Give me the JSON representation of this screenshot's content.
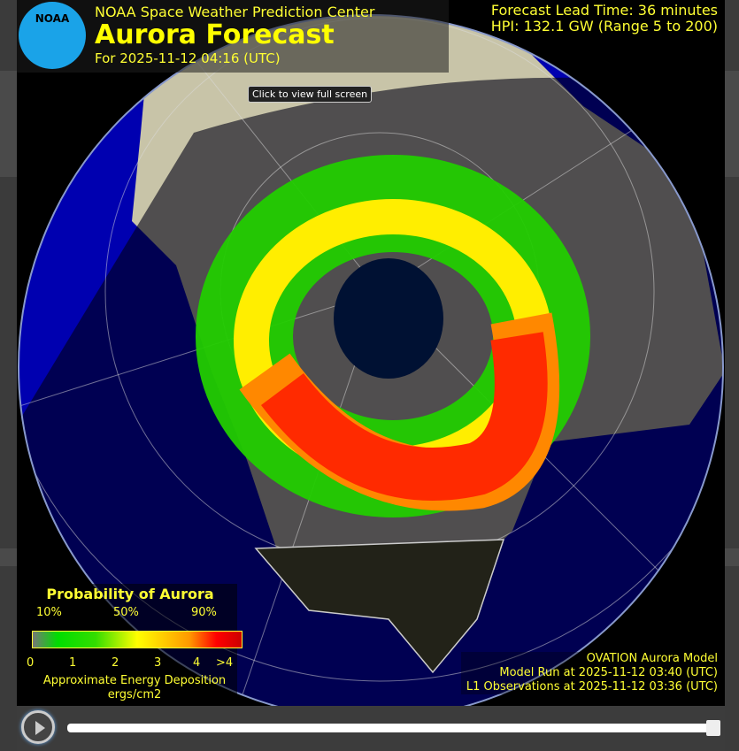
{
  "header": {
    "org": "NOAA Space Weather Prediction Center",
    "title": "Aurora Forecast",
    "forecast_for": "For 2025-11-12 04:16 (UTC)",
    "logo_text": "NOAA"
  },
  "info": {
    "lead_time": "Forecast Lead Time:  36 minutes",
    "hpi": "HPI: 132.1 GW (Range 5 to 200)"
  },
  "tooltip": "Click to view full screen",
  "legend": {
    "title": "Probability of Aurora",
    "percents": [
      "10%",
      "50%",
      "90%"
    ],
    "ticks": [
      "0",
      "1",
      "2",
      "3",
      "4",
      ">4"
    ],
    "unit_line1": "Approximate Energy Deposition",
    "unit_line2": "ergs/cm2",
    "colors": [
      "#777777",
      "#00dd00",
      "#ffff00",
      "#ff9900",
      "#ff0000"
    ]
  },
  "model": {
    "name": "OVATION Aurora Model",
    "run": "Model Run at 2025-11-12 03:40 (UTC)",
    "l1": "L1 Observations at 2025-11-12 03:36 (UTC)"
  },
  "controls": {
    "play_icon": "play-icon",
    "slider_value": 1.0
  },
  "colors": {
    "ocean": "#0000aa",
    "night_ocean": "#000044",
    "land": "#7a7560",
    "text": "#ffff33"
  }
}
